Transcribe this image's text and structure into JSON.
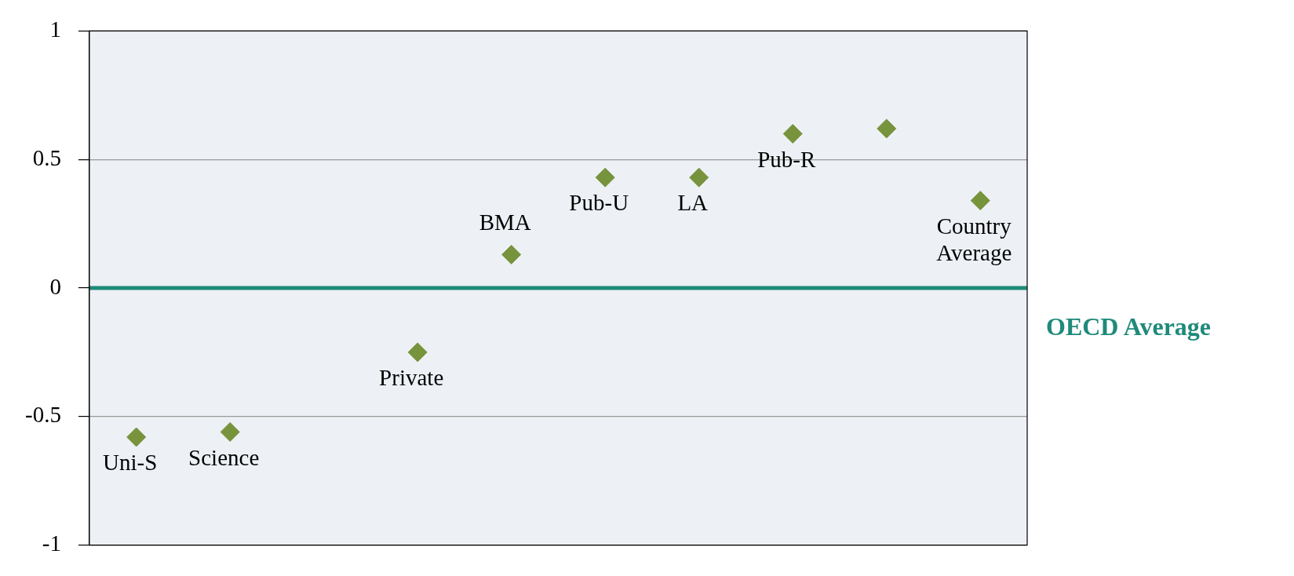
{
  "chart_data": {
    "type": "scatter",
    "categories": [
      "Uni-S",
      "Science",
      null,
      "Private",
      "BMA",
      "Pub-U",
      "LA",
      "Pub-R",
      null,
      "Country Average"
    ],
    "series": [
      {
        "color": "#77933c",
        "values": [
          -0.58,
          -0.56,
          null,
          -0.25,
          0.13,
          0.43,
          0.43,
          0.6,
          0.62,
          0.34
        ]
      }
    ],
    "ylim": [
      -1,
      1
    ],
    "yticks": [
      -1,
      -0.5,
      0,
      0.5,
      1
    ],
    "grid": "y",
    "legend": false,
    "marker": "diamond",
    "tick_labels": "y",
    "ref_lines": [
      {
        "axis": "y",
        "value": 0,
        "label": "OECD Average",
        "color": "#1f8a7a"
      }
    ]
  }
}
